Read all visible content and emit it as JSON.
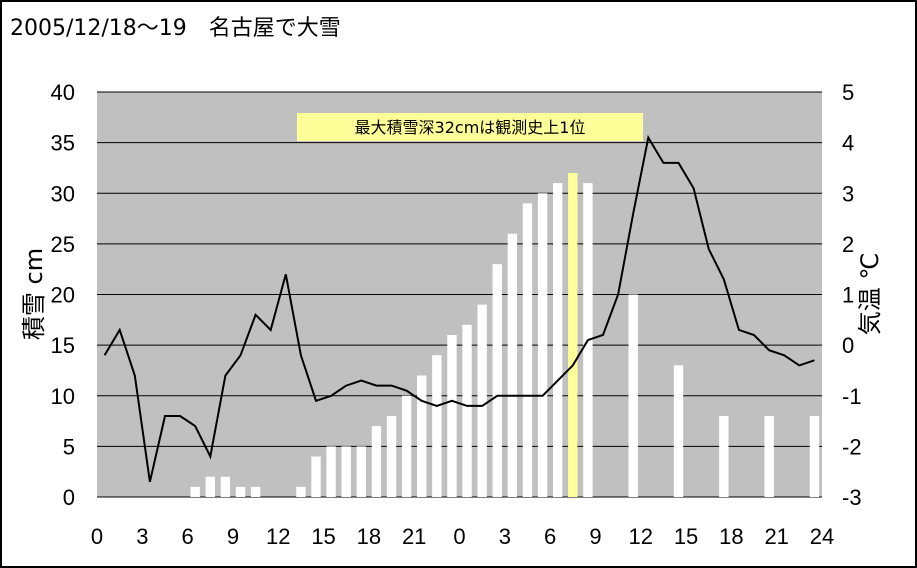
{
  "chart_data": {
    "type": "bar+line",
    "title": "2005/12/18～19　名古屋で大雪",
    "annotation": "最大積雪深32cmは観測史上1位",
    "y_left_label": "積雪 cm",
    "y_right_label": "気温 ℃",
    "y_left_range": [
      0,
      40
    ],
    "y_right_range": [
      -3,
      5
    ],
    "y_left_ticks": [
      0,
      5,
      10,
      15,
      20,
      25,
      30,
      35,
      40
    ],
    "y_right_ticks": [
      -3,
      -2,
      -1,
      0,
      1,
      2,
      3,
      4,
      5
    ],
    "x_tick_labels": [
      "0",
      "3",
      "6",
      "9",
      "12",
      "15",
      "18",
      "21",
      "0",
      "3",
      "6",
      "9",
      "12",
      "15",
      "18",
      "21",
      "24"
    ],
    "hour_index": [
      1,
      2,
      3,
      4,
      5,
      6,
      7,
      8,
      9,
      10,
      11,
      12,
      13,
      14,
      15,
      16,
      17,
      18,
      19,
      20,
      21,
      22,
      23,
      24,
      25,
      26,
      27,
      28,
      29,
      30,
      31,
      32,
      33,
      34,
      35,
      36,
      37,
      38,
      39,
      40,
      41,
      42,
      43,
      44,
      45,
      46,
      47,
      48
    ],
    "snow_depth_cm": [
      null,
      null,
      null,
      null,
      null,
      null,
      1,
      2,
      2,
      1,
      1,
      null,
      null,
      1,
      4,
      5,
      5,
      5,
      7,
      8,
      10,
      12,
      14,
      16,
      17,
      19,
      23,
      26,
      29,
      30,
      31,
      32,
      31,
      null,
      null,
      20,
      null,
      null,
      13,
      null,
      null,
      8,
      null,
      null,
      8,
      null,
      null,
      8
    ],
    "temperature_c": [
      -0.2,
      0.3,
      -0.6,
      -2.7,
      -1.4,
      -1.4,
      -1.6,
      -2.2,
      -0.6,
      -0.2,
      0.6,
      0.3,
      1.4,
      -0.2,
      -1.1,
      -1.0,
      -0.8,
      -0.7,
      -0.8,
      -0.8,
      -0.9,
      -1.1,
      -1.2,
      -1.1,
      -1.2,
      -1.2,
      -1.0,
      -1.0,
      -1.0,
      -1.0,
      -0.7,
      -0.4,
      0.1,
      0.2,
      1.0,
      2.6,
      4.1,
      3.6,
      3.6,
      3.1,
      1.9,
      1.3,
      0.3,
      0.2,
      -0.1,
      -0.2,
      -0.4,
      -0.3
    ],
    "highlight_hour_index": 32,
    "colors": {
      "plot_bg": "#c0c0c0",
      "bar": "#ffffff",
      "highlight_bar": "#ffff99",
      "line": "#000000",
      "note_bg": "#ffff99",
      "grid": "#000000"
    },
    "grid": "horizontal"
  }
}
